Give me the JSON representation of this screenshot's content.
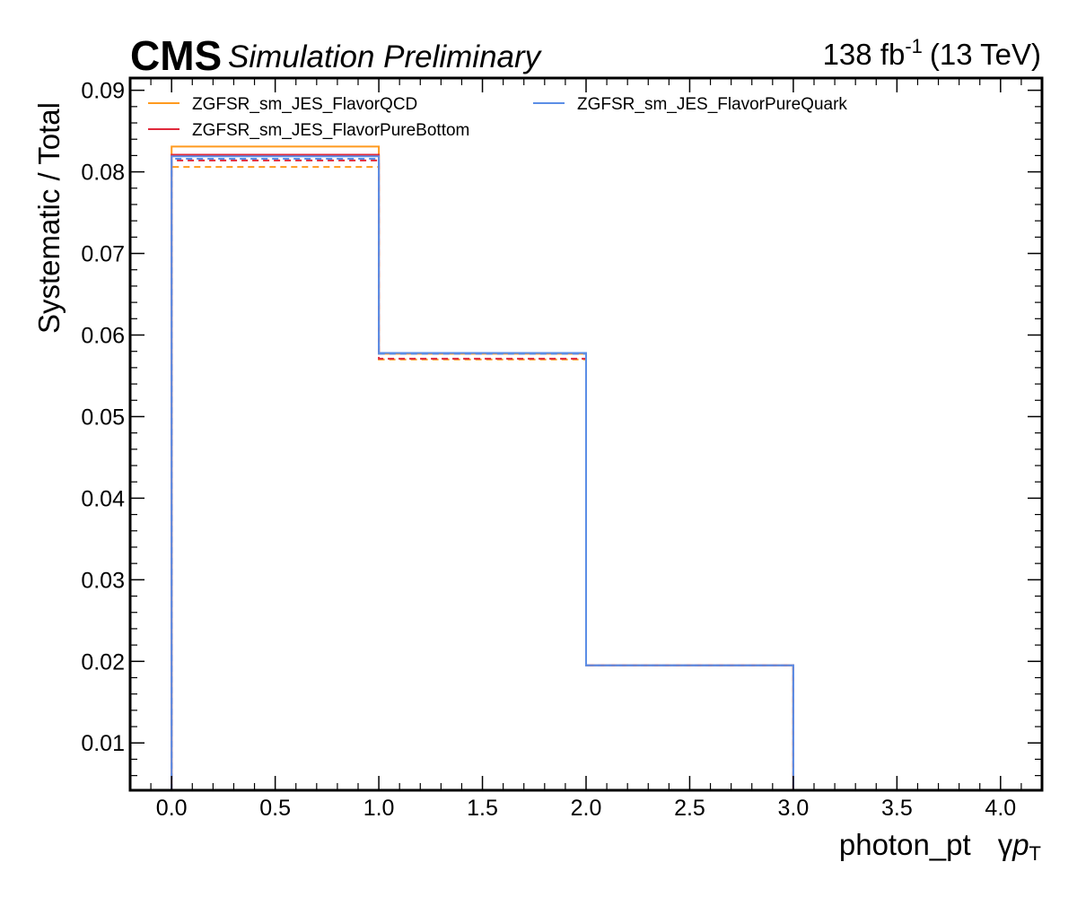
{
  "header": {
    "experiment": "CMS",
    "status": "Simulation Preliminary",
    "lumi_value": "138 fb",
    "lumi_exp": "-1",
    "energy": "(13 TeV)"
  },
  "chart_data": {
    "type": "histogram-step",
    "xlabel": "photon_pt",
    "xlabel_symbol_gamma": "γ",
    "xlabel_symbol_p": "p",
    "xlabel_symbol_sub": "T",
    "ylabel": "Systematic / Total",
    "xlim": [
      -0.2,
      4.2
    ],
    "ylim": [
      0.0042,
      0.0915
    ],
    "x_ticks": [
      0.0,
      0.5,
      1.0,
      1.5,
      2.0,
      2.5,
      3.0,
      3.5,
      4.0
    ],
    "x_tick_labels": [
      "0.0",
      "0.5",
      "1.0",
      "1.5",
      "2.0",
      "2.5",
      "3.0",
      "3.5",
      "4.0"
    ],
    "y_ticks": [
      0.01,
      0.02,
      0.03,
      0.04,
      0.05,
      0.06,
      0.07,
      0.08,
      0.09
    ],
    "y_tick_labels": [
      "0.01",
      "0.02",
      "0.03",
      "0.04",
      "0.05",
      "0.06",
      "0.07",
      "0.08",
      "0.09"
    ],
    "bin_edges": [
      0,
      1,
      2,
      3,
      4
    ],
    "grid": false,
    "legend_position": "top",
    "series": [
      {
        "name": "ZGFSR_sm_JES_FlavorQCD",
        "color": "#ff9a1f",
        "up": [
          0.0831,
          0.0577,
          0.0195,
          0.0042
        ],
        "down": [
          0.0806,
          0.057,
          0.0195,
          0.0042
        ]
      },
      {
        "name": "ZGFSR_sm_JES_FlavorPureBottom",
        "color": "#e0293b",
        "up": [
          0.0821,
          0.0578,
          0.0195,
          0.0042
        ],
        "down": [
          0.0814,
          0.0571,
          0.0195,
          0.0042
        ]
      },
      {
        "name": "ZGFSR_sm_JES_FlavorPureQuark",
        "color": "#5b8ee6",
        "up": [
          0.0819,
          0.0578,
          0.0195,
          0.0042
        ],
        "down": [
          0.0816,
          0.0577,
          0.0195,
          0.0042
        ]
      }
    ]
  }
}
